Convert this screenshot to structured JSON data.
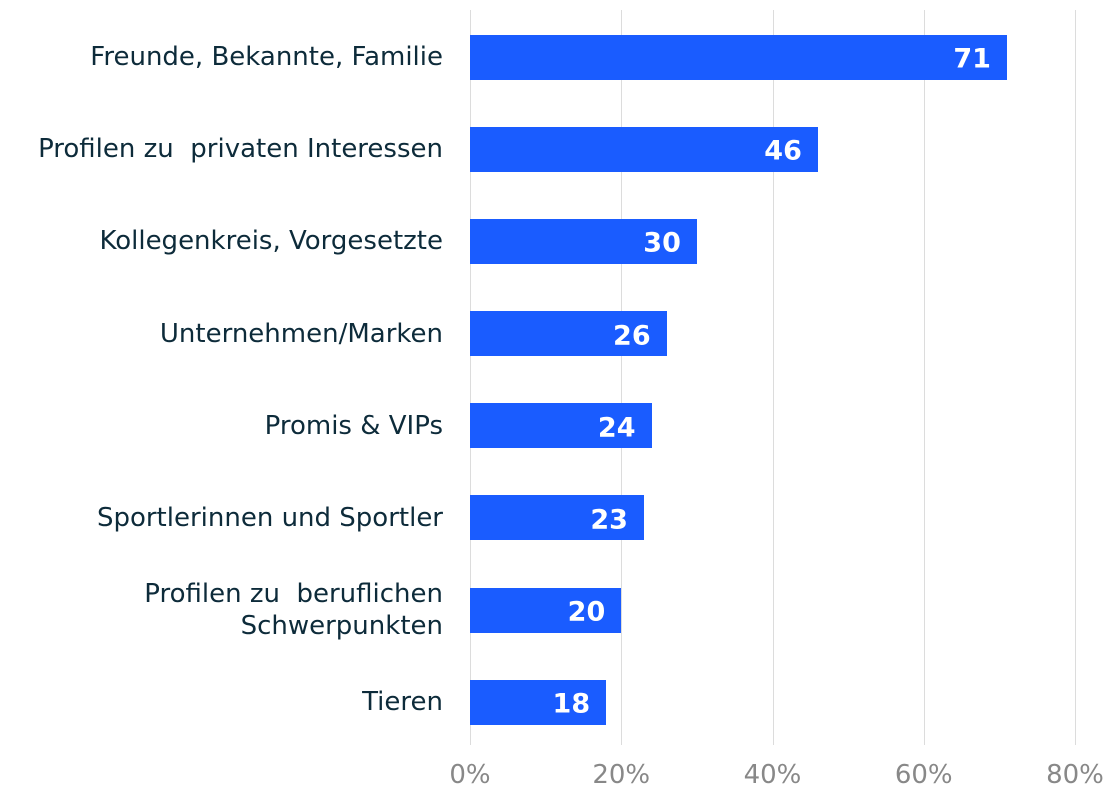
{
  "chart_data": {
    "type": "bar",
    "orientation": "horizontal",
    "categories": [
      "Freunde, Bekannte, Familie",
      "Profilen zu  privaten Interessen",
      "Kollegenkreis, Vorgesetzte",
      "Unternehmen/Marken",
      "Promis & VIPs",
      "Sportlerinnen und Sportler",
      "Profilen zu  beruflichen\nSchwerpunkten",
      "Tieren"
    ],
    "values": [
      71,
      46,
      30,
      26,
      24,
      23,
      20,
      18
    ],
    "color": "#1a5cff",
    "xlim": [
      0,
      80
    ],
    "xticks": [
      {
        "value": 0,
        "label": "0%"
      },
      {
        "value": 20,
        "label": "20%"
      },
      {
        "value": 40,
        "label": "40%"
      },
      {
        "value": 60,
        "label": "60%"
      },
      {
        "value": 80,
        "label": "80%"
      }
    ],
    "grid": true
  }
}
